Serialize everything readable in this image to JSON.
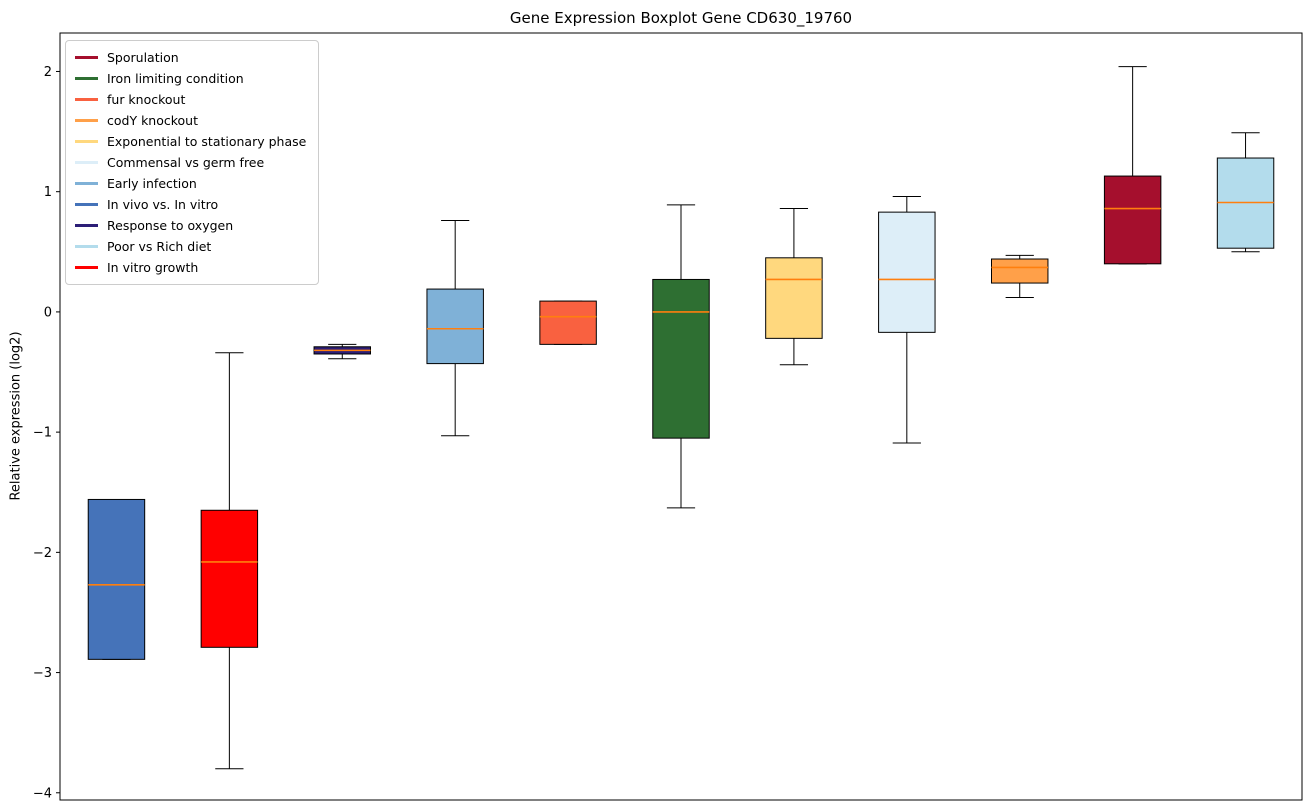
{
  "chart_data": {
    "type": "boxplot",
    "title": "Gene Expression Boxplot Gene CD630_19760",
    "xlabel": "",
    "ylabel": "Relative expression (log2)",
    "xlim": [
      0.5,
      11.5
    ],
    "ylim": [
      -4.06,
      2.32
    ],
    "yticks": [
      -4,
      -3,
      -2,
      -1,
      0,
      1,
      2
    ],
    "x_tick_labels": [],
    "grid": false,
    "legend_position": "upper left",
    "median_color": "#ff7f0e",
    "box_edge_color": "#000000",
    "whisker_color": "#000000",
    "box_width": 0.5,
    "cap_width": 0.25,
    "series": [
      {
        "name": "In vivo vs. In vitro",
        "position": 1,
        "color": "#4573b9",
        "whislo": -2.89,
        "q1": -2.89,
        "med": -2.27,
        "q3": -1.56,
        "whishi": -1.56
      },
      {
        "name": "In vitro growth",
        "position": 2,
        "color": "#ff0000",
        "whislo": -3.8,
        "q1": -2.79,
        "med": -2.08,
        "q3": -1.65,
        "whishi": -0.34
      },
      {
        "name": "Response to oxygen",
        "position": 3,
        "color": "#2c1e77",
        "whislo": -0.39,
        "q1": -0.35,
        "med": -0.32,
        "q3": -0.29,
        "whishi": -0.27
      },
      {
        "name": "Early infection",
        "position": 4,
        "color": "#7fb1d7",
        "whislo": -1.03,
        "q1": -0.43,
        "med": -0.14,
        "q3": 0.19,
        "whishi": 0.76
      },
      {
        "name": "fur knockout",
        "position": 5,
        "color": "#f96140",
        "whislo": -0.27,
        "q1": -0.27,
        "med": -0.04,
        "q3": 0.09,
        "whishi": 0.09
      },
      {
        "name": "Iron limiting condition",
        "position": 6,
        "color": "#2e6f32",
        "whislo": -1.63,
        "q1": -1.05,
        "med": 0.0,
        "q3": 0.27,
        "whishi": 0.89
      },
      {
        "name": "Exponential to stationary phase",
        "position": 7,
        "color": "#ffd87e",
        "whislo": -0.44,
        "q1": -0.22,
        "med": 0.27,
        "q3": 0.45,
        "whishi": 0.86
      },
      {
        "name": "Commensal vs germ free",
        "position": 8,
        "color": "#ddeef8",
        "whislo": -1.09,
        "q1": -0.17,
        "med": 0.27,
        "q3": 0.83,
        "whishi": 0.96
      },
      {
        "name": "codY knockout",
        "position": 9,
        "color": "#ffa049",
        "whislo": 0.12,
        "q1": 0.24,
        "med": 0.37,
        "q3": 0.44,
        "whishi": 0.47
      },
      {
        "name": "Sporulation",
        "position": 10,
        "color": "#a50f2d",
        "whislo": 0.4,
        "q1": 0.4,
        "med": 0.86,
        "q3": 1.13,
        "whishi": 2.04
      },
      {
        "name": "Poor vs Rich diet",
        "position": 11,
        "color": "#b3dcec",
        "whislo": 0.5,
        "q1": 0.53,
        "med": 0.91,
        "q3": 1.28,
        "whishi": 1.49
      }
    ],
    "legend_entries": [
      {
        "label": "Sporulation",
        "color": "#a50f2d"
      },
      {
        "label": "Iron limiting condition",
        "color": "#2e6f32"
      },
      {
        "label": "fur knockout",
        "color": "#f96140"
      },
      {
        "label": "codY knockout",
        "color": "#ffa049"
      },
      {
        "label": "Exponential to stationary phase",
        "color": "#ffd87e"
      },
      {
        "label": "Commensal vs germ free",
        "color": "#ddeef8"
      },
      {
        "label": "Early infection",
        "color": "#7fb1d7"
      },
      {
        "label": "In vivo vs. In vitro",
        "color": "#4573b9"
      },
      {
        "label": "Response to oxygen",
        "color": "#2c1e77"
      },
      {
        "label": "Poor vs Rich diet",
        "color": "#b3dcec"
      },
      {
        "label": "In vitro growth",
        "color": "#ff0000"
      }
    ]
  }
}
